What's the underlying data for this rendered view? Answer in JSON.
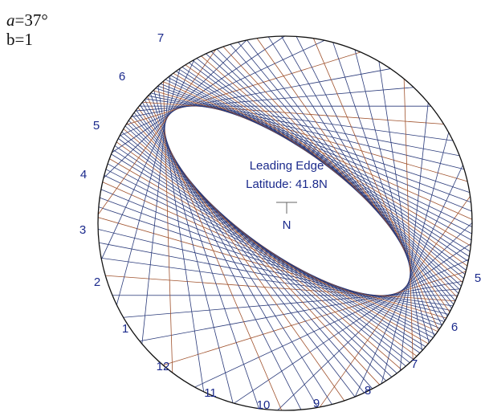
{
  "parameters": {
    "a_symbol": "a",
    "a_value": "=37°",
    "b": "b=1"
  },
  "caption": {
    "line1": "Leading Edge",
    "line2": "Latitude: 41.8N",
    "north": "N"
  },
  "hour_labels": [
    "7",
    "6",
    "5",
    "4",
    "3",
    "2",
    "1",
    "12",
    "11",
    "10",
    "9",
    "8",
    "7",
    "6",
    "5"
  ]
}
